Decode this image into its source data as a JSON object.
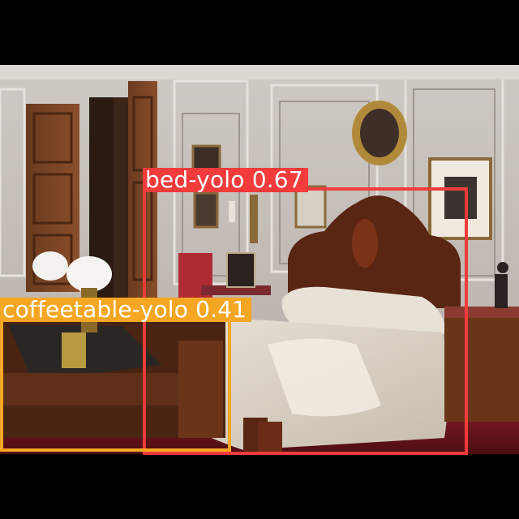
{
  "colors": {
    "letterbox": "#000000",
    "bed_box": "#f23b3b",
    "coffeetable_box": "#f5a623",
    "label_text": "#ffffff"
  },
  "detections": [
    {
      "id": "bed",
      "label": "bed-yolo",
      "score": "0.67",
      "text": "bed-yolo  0.67"
    },
    {
      "id": "coffeetable",
      "label": "coffeetable-yolo",
      "score": "0.41",
      "text": "coffeetable-yolo  0.41"
    }
  ]
}
